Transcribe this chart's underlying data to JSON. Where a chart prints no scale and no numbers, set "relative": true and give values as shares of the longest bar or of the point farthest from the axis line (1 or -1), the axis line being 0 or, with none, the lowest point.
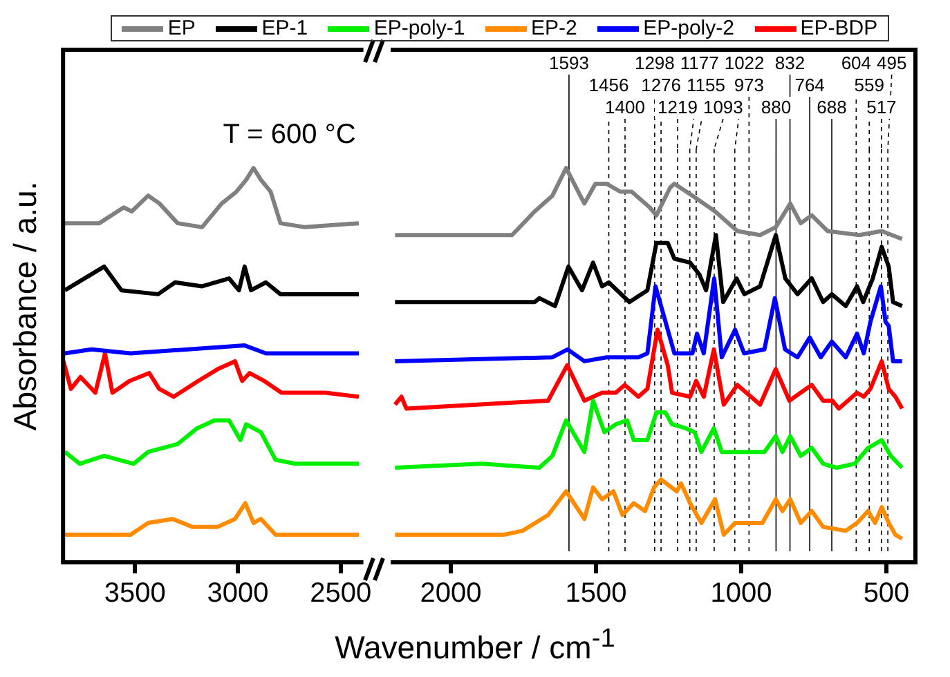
{
  "chart_data": [
    {
      "type": "line",
      "relative": true,
      "ylabel": "Absorbance / a.u.",
      "legend": "top",
      "xlim": [
        3850,
        2400
      ],
      "xticks": [
        3500,
        3000,
        2500
      ],
      "annotations": [
        "T = 600 °C"
      ],
      "series": [
        {
          "name": "EP",
          "color": "#808080",
          "x": [
            3841,
            3674,
            3555,
            3516,
            3436,
            3381,
            3293,
            3174,
            3079,
            3007,
            2960,
            2924,
            2888,
            2841,
            2793,
            2674,
            2412
          ],
          "values": [
            0.86,
            0.86,
            0.9,
            0.89,
            0.93,
            0.91,
            0.86,
            0.85,
            0.91,
            0.94,
            0.97,
            1,
            0.97,
            0.94,
            0.86,
            0.85,
            0.86
          ]
        },
        {
          "name": "EP-1",
          "color": "#000000",
          "x": [
            3841,
            3650,
            3566,
            3388,
            3305,
            3174,
            3043,
            2995,
            2967,
            2936,
            2864,
            2793,
            2412
          ],
          "values": [
            0.69,
            0.75,
            0.69,
            0.68,
            0.71,
            0.7,
            0.72,
            0.69,
            0.75,
            0.69,
            0.71,
            0.68,
            0.68
          ]
        },
        {
          "name": "EP-poly-1",
          "color": "#00ee00",
          "x": [
            3841,
            3769,
            3650,
            3507,
            3436,
            3293,
            3198,
            3114,
            3043,
            2988,
            2960,
            2888,
            2817,
            2722,
            2412
          ],
          "values": [
            0.28,
            0.25,
            0.27,
            0.25,
            0.28,
            0.3,
            0.34,
            0.36,
            0.36,
            0.31,
            0.35,
            0.33,
            0.26,
            0.25,
            0.25
          ]
        },
        {
          "name": "EP-2",
          "color": "#ff8c00",
          "x": [
            3841,
            3522,
            3436,
            3317,
            3222,
            3098,
            3014,
            2964,
            2924,
            2888,
            2817,
            2722,
            2412
          ],
          "values": [
            0.07,
            0.07,
            0.1,
            0.11,
            0.09,
            0.09,
            0.11,
            0.15,
            0.1,
            0.11,
            0.07,
            0.07,
            0.07
          ]
        },
        {
          "name": "EP-poly-2",
          "color": "#0000ff",
          "x": [
            3841,
            3712,
            3522,
            2967,
            2864,
            2412
          ],
          "values": [
            0.53,
            0.54,
            0.53,
            0.55,
            0.53,
            0.53
          ]
        },
        {
          "name": "EP-BDP",
          "color": "#ff0000",
          "x": [
            3848,
            3812,
            3765,
            3693,
            3646,
            3610,
            3527,
            3431,
            3383,
            3312,
            3193,
            3098,
            3014,
            2979,
            2943,
            2872,
            2788,
            2574,
            2412
          ],
          "values": [
            0.51,
            0.44,
            0.47,
            0.43,
            0.53,
            0.43,
            0.46,
            0.48,
            0.44,
            0.42,
            0.46,
            0.49,
            0.51,
            0.46,
            0.48,
            0.46,
            0.43,
            0.43,
            0.42
          ]
        }
      ]
    },
    {
      "type": "line",
      "relative": true,
      "xlabel": "Wavenumber / cm$^{-1}$",
      "xlim": [
        2200,
        400
      ],
      "xticks": [
        2000,
        1500,
        1000,
        500
      ],
      "series": [
        {
          "color": "#808080",
          "x": [
            2192,
            1789,
            1711,
            1650,
            1603,
            1540,
            1502,
            1463,
            1416,
            1377,
            1315,
            1292,
            1245,
            1230,
            1168,
            1090,
            1013,
            935,
            881,
            831,
            795,
            757,
            702,
            594,
            516,
            446
          ],
          "values": [
            0.83,
            0.83,
            0.89,
            0.93,
            1,
            0.91,
            0.96,
            0.96,
            0.94,
            0.94,
            0.9,
            0.88,
            0.95,
            0.96,
            0.93,
            0.89,
            0.84,
            0.83,
            0.85,
            0.91,
            0.86,
            0.88,
            0.84,
            0.83,
            0.84,
            0.82
          ]
        },
        {
          "color": "#000000",
          "x": [
            2192,
            1711,
            1695,
            1641,
            1595,
            1548,
            1510,
            1479,
            1456,
            1385,
            1323,
            1292,
            1253,
            1230,
            1176,
            1144,
            1121,
            1087,
            1062,
            1016,
            989,
            935,
            881,
            848,
            806,
            757,
            718,
            688,
            640,
            601,
            580,
            547,
            516,
            492,
            477,
            446
          ],
          "values": [
            0.66,
            0.66,
            0.67,
            0.65,
            0.75,
            0.69,
            0.76,
            0.7,
            0.71,
            0.66,
            0.69,
            0.81,
            0.81,
            0.77,
            0.76,
            0.73,
            0.69,
            0.83,
            0.66,
            0.72,
            0.68,
            0.7,
            0.83,
            0.72,
            0.68,
            0.72,
            0.66,
            0.68,
            0.65,
            0.7,
            0.66,
            0.72,
            0.8,
            0.75,
            0.66,
            0.65
          ]
        },
        {
          "color": "#00ee00",
          "x": [
            2192,
            1895,
            1695,
            1650,
            1603,
            1540,
            1510,
            1471,
            1432,
            1393,
            1370,
            1323,
            1292,
            1261,
            1238,
            1191,
            1160,
            1137,
            1094,
            1067,
            1021,
            966,
            920,
            881,
            858,
            831,
            795,
            757,
            718,
            671,
            609,
            563,
            516,
            485,
            446
          ],
          "values": [
            0.24,
            0.25,
            0.24,
            0.27,
            0.36,
            0.28,
            0.41,
            0.33,
            0.35,
            0.36,
            0.31,
            0.31,
            0.38,
            0.38,
            0.35,
            0.34,
            0.33,
            0.28,
            0.34,
            0.28,
            0.28,
            0.28,
            0.28,
            0.32,
            0.28,
            0.32,
            0.27,
            0.29,
            0.25,
            0.24,
            0.25,
            0.29,
            0.31,
            0.27,
            0.24
          ]
        },
        {
          "color": "#ff8c00",
          "x": [
            2192,
            1817,
            1753,
            1665,
            1603,
            1540,
            1510,
            1479,
            1440,
            1409,
            1370,
            1331,
            1300,
            1276,
            1222,
            1207,
            1176,
            1137,
            1090,
            1060,
            1021,
            966,
            927,
            881,
            858,
            831,
            795,
            757,
            718,
            640,
            601,
            563,
            539,
            516,
            492,
            469,
            446
          ],
          "values": [
            0.07,
            0.07,
            0.08,
            0.12,
            0.18,
            0.11,
            0.19,
            0.16,
            0.18,
            0.12,
            0.15,
            0.13,
            0.19,
            0.21,
            0.18,
            0.2,
            0.15,
            0.1,
            0.16,
            0.07,
            0.1,
            0.1,
            0.1,
            0.16,
            0.13,
            0.16,
            0.1,
            0.13,
            0.09,
            0.08,
            0.1,
            0.13,
            0.1,
            0.14,
            0.1,
            0.07,
            0.06
          ]
        },
        {
          "color": "#0000ff",
          "x": [
            2192,
            1650,
            1598,
            1540,
            1463,
            1354,
            1323,
            1295,
            1253,
            1230,
            1168,
            1152,
            1129,
            1093,
            1067,
            1021,
            990,
            920,
            884,
            849,
            806,
            764,
            726,
            688,
            640,
            601,
            578,
            555,
            519,
            503,
            492,
            477,
            446
          ],
          "values": [
            0.51,
            0.52,
            0.54,
            0.51,
            0.52,
            0.52,
            0.53,
            0.7,
            0.59,
            0.53,
            0.53,
            0.58,
            0.53,
            0.72,
            0.52,
            0.59,
            0.53,
            0.54,
            0.67,
            0.54,
            0.52,
            0.57,
            0.52,
            0.56,
            0.52,
            0.58,
            0.53,
            0.61,
            0.7,
            0.61,
            0.6,
            0.51,
            0.51
          ]
        },
        {
          "color": "#ff0000",
          "x": [
            2192,
            2170,
            2153,
            1665,
            1599,
            1540,
            1479,
            1432,
            1401,
            1354,
            1323,
            1288,
            1253,
            1238,
            1176,
            1155,
            1129,
            1094,
            1060,
            1013,
            935,
            881,
            834,
            757,
            718,
            686,
            664,
            601,
            578,
            555,
            516,
            492,
            469,
            446
          ],
          "values": [
            0.4,
            0.42,
            0.39,
            0.41,
            0.5,
            0.41,
            0.43,
            0.43,
            0.45,
            0.42,
            0.44,
            0.59,
            0.5,
            0.43,
            0.42,
            0.46,
            0.42,
            0.54,
            0.4,
            0.45,
            0.4,
            0.49,
            0.41,
            0.45,
            0.41,
            0.41,
            0.39,
            0.43,
            0.42,
            0.44,
            0.51,
            0.44,
            0.42,
            0.39
          ]
        }
      ],
      "ref_lines": [
        {
          "axis": "x",
          "value": 1593,
          "label": "1593",
          "line_style": "solid"
        },
        {
          "axis": "x",
          "value": 1456,
          "label": "1456",
          "line_style": "dashed"
        },
        {
          "axis": "x",
          "value": 1400,
          "label": "1400",
          "line_style": "dashed"
        },
        {
          "axis": "x",
          "value": 1298,
          "label": "1298",
          "line_style": "dashed"
        },
        {
          "axis": "x",
          "value": 1276,
          "label": "1276",
          "line_style": "dashed"
        },
        {
          "axis": "x",
          "value": 1219,
          "label": "1219",
          "line_style": "dashed"
        },
        {
          "axis": "x",
          "value": 1177,
          "label": "1177",
          "line_style": "dashed"
        },
        {
          "axis": "x",
          "value": 1155,
          "label": "1155",
          "line_style": "dashed"
        },
        {
          "axis": "x",
          "value": 1093,
          "label": "1093",
          "line_style": "dashed"
        },
        {
          "axis": "x",
          "value": 1022,
          "label": "1022",
          "line_style": "dashed"
        },
        {
          "axis": "x",
          "value": 973,
          "label": "973",
          "line_style": "dashed"
        },
        {
          "axis": "x",
          "value": 880,
          "label": "880",
          "line_style": "solid"
        },
        {
          "axis": "x",
          "value": 832,
          "label": "832",
          "line_style": "solid"
        },
        {
          "axis": "x",
          "value": 764,
          "label": "764",
          "line_style": "solid"
        },
        {
          "axis": "x",
          "value": 688,
          "label": "688",
          "line_style": "solid"
        },
        {
          "axis": "x",
          "value": 604,
          "label": "604",
          "line_style": "dashed"
        },
        {
          "axis": "x",
          "value": 559,
          "label": "559",
          "line_style": "dashed"
        },
        {
          "axis": "x",
          "value": 517,
          "label": "517",
          "line_style": "dashed"
        },
        {
          "axis": "x",
          "value": 495,
          "label": "495",
          "line_style": "dashed"
        }
      ]
    }
  ]
}
